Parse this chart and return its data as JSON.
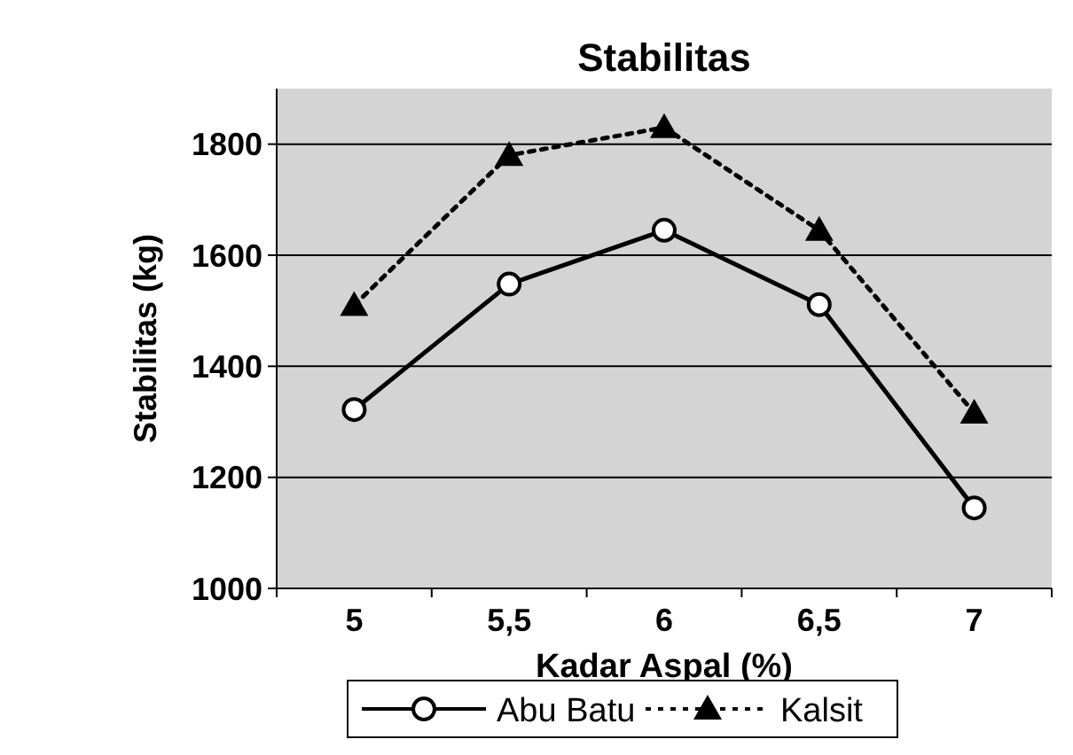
{
  "chart_data": {
    "type": "line",
    "title": "Stabilitas",
    "xlabel": "Kadar Aspal (%)",
    "ylabel": "Stabilitas (kg)",
    "categories": [
      "5",
      "5,5",
      "6",
      "6,5",
      "7"
    ],
    "series": [
      {
        "name": "Abu Batu",
        "color": "#000000",
        "marker": "circle",
        "line_style": "solid",
        "values": [
          1322,
          1548,
          1645,
          1511,
          1145
        ]
      },
      {
        "name": "Kalsit",
        "color": "#000000",
        "marker": "triangle",
        "line_style": "dotted",
        "values": [
          1510,
          1780,
          1830,
          1645,
          1316
        ]
      }
    ],
    "ylim": [
      1000,
      1900
    ],
    "yticks": [
      1000,
      1200,
      1400,
      1600,
      1800
    ],
    "grid": "y",
    "legend": "bottom"
  }
}
